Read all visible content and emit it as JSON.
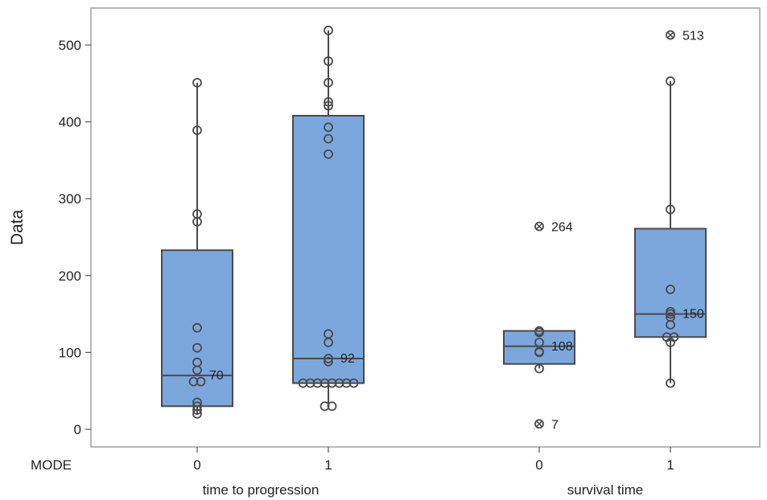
{
  "chart_data": {
    "type": "boxplot",
    "ylabel": "Data",
    "ylim": [
      -25,
      545
    ],
    "yticks": [
      0,
      100,
      200,
      300,
      400,
      500
    ],
    "x_factor_label": "MODE",
    "groups": [
      {
        "label": "time to progression",
        "boxes": [
          {
            "mode": "0",
            "q1": 30,
            "median": 70,
            "q3": 233,
            "whisker_low": 20,
            "whisker_high": 451,
            "median_label": "70",
            "points": [
              20,
              25,
              30,
              35,
              62,
              62,
              77,
              87,
              106,
              132,
              270,
              280,
              389,
              451
            ],
            "outliers": []
          },
          {
            "mode": "1",
            "q1": 60,
            "median": 92,
            "q3": 408,
            "whisker_low": 30,
            "whisker_high": 519,
            "median_label": "92",
            "points": [
              30,
              30,
              60,
              60,
              60,
              60,
              60,
              60,
              60,
              60,
              88,
              92,
              113,
              124,
              358,
              378,
              393,
              421,
              426,
              451,
              479,
              519
            ],
            "outliers": []
          }
        ]
      },
      {
        "label": "survival time",
        "boxes": [
          {
            "mode": "0",
            "q1": 85,
            "median": 108,
            "q3": 128,
            "whisker_low": 79,
            "whisker_high": 128,
            "median_label": "108",
            "points": [
              79,
              100,
              101,
              113,
              126,
              128
            ],
            "outliers": [
              {
                "value": 264,
                "label": "264"
              },
              {
                "value": 7,
                "label": "7"
              }
            ]
          },
          {
            "mode": "1",
            "q1": 120,
            "median": 150,
            "q3": 261,
            "whisker_low": 60,
            "whisker_high": 453,
            "median_label": "150",
            "points": [
              60,
              113,
              120,
              120,
              136,
              146,
              150,
              153,
              182,
              286,
              453
            ],
            "outliers": [
              {
                "value": 513,
                "label": "513"
              }
            ]
          }
        ]
      }
    ],
    "colors": {
      "box_fill": "#7BA7DC",
      "box_stroke": "#4A4A4A",
      "frame": "#A0A0A0"
    }
  }
}
